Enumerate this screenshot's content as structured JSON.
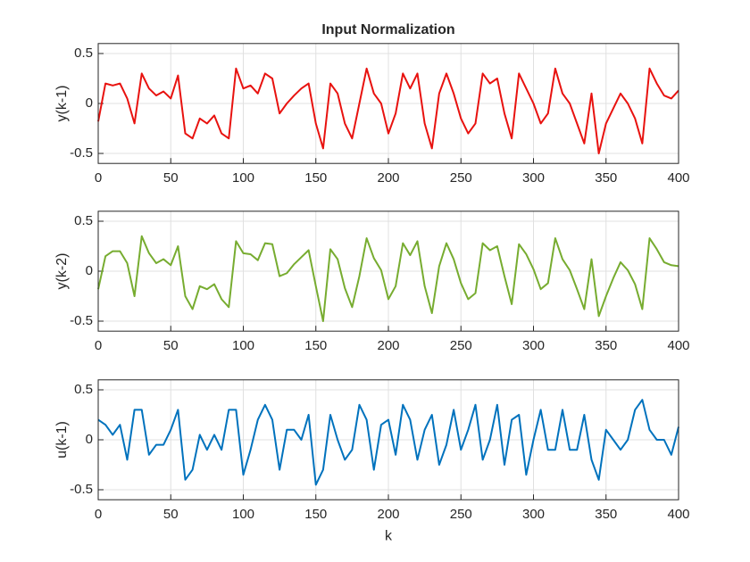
{
  "chart_data": [
    {
      "type": "line",
      "title": "Input Normalization",
      "ylabel": "y(k-1)",
      "color": "#e8120f",
      "x": [
        0,
        5,
        10,
        15,
        20,
        25,
        30,
        35,
        40,
        45,
        50,
        55,
        60,
        65,
        70,
        75,
        80,
        85,
        90,
        95,
        100,
        105,
        110,
        115,
        120,
        125,
        130,
        135,
        140,
        145,
        150,
        155,
        160,
        165,
        170,
        175,
        180,
        185,
        190,
        195,
        200,
        205,
        210,
        215,
        220,
        225,
        230,
        235,
        240,
        245,
        250,
        255,
        260,
        265,
        270,
        275,
        280,
        285,
        290,
        295,
        300,
        305,
        310,
        315,
        320,
        325,
        330,
        335,
        340,
        345,
        350,
        355,
        360,
        365,
        370,
        375,
        380,
        385,
        390,
        395,
        400
      ],
      "values": [
        -0.18,
        0.2,
        0.18,
        0.2,
        0.05,
        -0.2,
        0.3,
        0.15,
        0.08,
        0.12,
        0.05,
        0.28,
        -0.3,
        -0.35,
        -0.15,
        -0.2,
        -0.12,
        -0.3,
        -0.35,
        0.35,
        0.15,
        0.18,
        0.1,
        0.3,
        0.25,
        -0.1,
        0.0,
        0.08,
        0.15,
        0.2,
        -0.2,
        -0.45,
        0.2,
        0.1,
        -0.2,
        -0.35,
        0.0,
        0.35,
        0.1,
        0.0,
        -0.3,
        -0.1,
        0.3,
        0.15,
        0.3,
        -0.2,
        -0.45,
        0.1,
        0.3,
        0.1,
        -0.15,
        -0.3,
        -0.2,
        0.3,
        0.2,
        0.25,
        -0.1,
        -0.35,
        0.3,
        0.15,
        0.0,
        -0.2,
        -0.1,
        0.35,
        0.1,
        0.0,
        -0.2,
        -0.4,
        0.1,
        -0.5,
        -0.2,
        -0.05,
        0.1,
        0.0,
        -0.15,
        -0.4,
        0.35,
        0.2,
        0.08,
        0.05,
        0.13
      ],
      "xlim": [
        0,
        400
      ],
      "ylim": [
        -0.6,
        0.6
      ],
      "xticks": [
        0,
        50,
        100,
        150,
        200,
        250,
        300,
        350,
        400
      ],
      "yticks": [
        -0.5,
        0,
        0.5
      ],
      "grid": true
    },
    {
      "type": "line",
      "ylabel": "y(k-2)",
      "color": "#77ac30",
      "x": [
        0,
        5,
        10,
        15,
        20,
        25,
        30,
        35,
        40,
        45,
        50,
        55,
        60,
        65,
        70,
        75,
        80,
        85,
        90,
        95,
        100,
        105,
        110,
        115,
        120,
        125,
        130,
        135,
        140,
        145,
        150,
        155,
        160,
        165,
        170,
        175,
        180,
        185,
        190,
        195,
        200,
        205,
        210,
        215,
        220,
        225,
        230,
        235,
        240,
        245,
        250,
        255,
        260,
        265,
        270,
        275,
        280,
        285,
        290,
        295,
        300,
        305,
        310,
        315,
        320,
        325,
        330,
        335,
        340,
        345,
        350,
        355,
        360,
        365,
        370,
        375,
        380,
        385,
        390,
        395,
        400
      ],
      "values": [
        -0.18,
        0.15,
        0.2,
        0.2,
        0.08,
        -0.25,
        0.35,
        0.18,
        0.08,
        0.12,
        0.06,
        0.25,
        -0.25,
        -0.38,
        -0.15,
        -0.18,
        -0.13,
        -0.28,
        -0.36,
        0.3,
        0.18,
        0.17,
        0.11,
        0.28,
        0.27,
        -0.05,
        -0.02,
        0.07,
        0.14,
        0.21,
        -0.15,
        -0.5,
        0.22,
        0.12,
        -0.17,
        -0.36,
        -0.05,
        0.33,
        0.13,
        0.01,
        -0.28,
        -0.15,
        0.28,
        0.16,
        0.3,
        -0.15,
        -0.42,
        0.05,
        0.28,
        0.12,
        -0.12,
        -0.28,
        -0.22,
        0.28,
        0.21,
        0.25,
        -0.05,
        -0.33,
        0.27,
        0.17,
        0.02,
        -0.18,
        -0.12,
        0.33,
        0.12,
        0.01,
        -0.18,
        -0.38,
        0.12,
        -0.45,
        -0.25,
        -0.07,
        0.09,
        0.01,
        -0.13,
        -0.38,
        0.33,
        0.22,
        0.09,
        0.06,
        0.05
      ],
      "xlim": [
        0,
        400
      ],
      "ylim": [
        -0.6,
        0.6
      ],
      "xticks": [
        0,
        50,
        100,
        150,
        200,
        250,
        300,
        350,
        400
      ],
      "yticks": [
        -0.5,
        0,
        0.5
      ],
      "grid": true
    },
    {
      "type": "line",
      "ylabel": "u(k-1)",
      "xlabel": "k",
      "color": "#0072bd",
      "x": [
        0,
        5,
        10,
        15,
        20,
        25,
        30,
        35,
        40,
        45,
        50,
        55,
        60,
        65,
        70,
        75,
        80,
        85,
        90,
        95,
        100,
        105,
        110,
        115,
        120,
        125,
        130,
        135,
        140,
        145,
        150,
        155,
        160,
        165,
        170,
        175,
        180,
        185,
        190,
        195,
        200,
        205,
        210,
        215,
        220,
        225,
        230,
        235,
        240,
        245,
        250,
        255,
        260,
        265,
        270,
        275,
        280,
        285,
        290,
        295,
        300,
        305,
        310,
        315,
        320,
        325,
        330,
        335,
        340,
        345,
        350,
        355,
        360,
        365,
        370,
        375,
        380,
        385,
        390,
        395,
        400
      ],
      "values": [
        0.2,
        0.15,
        0.05,
        0.15,
        -0.2,
        0.3,
        0.3,
        -0.15,
        -0.05,
        -0.05,
        0.1,
        0.3,
        -0.4,
        -0.3,
        0.05,
        -0.1,
        0.05,
        -0.1,
        0.3,
        0.3,
        -0.35,
        -0.1,
        0.2,
        0.35,
        0.2,
        -0.3,
        0.1,
        0.1,
        0.0,
        0.25,
        -0.45,
        -0.3,
        0.25,
        0.0,
        -0.2,
        -0.1,
        0.35,
        0.2,
        -0.3,
        0.15,
        0.2,
        -0.15,
        0.35,
        0.2,
        -0.2,
        0.1,
        0.25,
        -0.25,
        -0.05,
        0.3,
        -0.1,
        0.1,
        0.35,
        -0.2,
        0.0,
        0.35,
        -0.25,
        0.2,
        0.25,
        -0.35,
        0.0,
        0.3,
        -0.1,
        -0.1,
        0.3,
        -0.1,
        -0.1,
        0.25,
        -0.2,
        -0.4,
        0.1,
        0.0,
        -0.1,
        0.0,
        0.3,
        0.4,
        0.1,
        0.0,
        0.0,
        -0.15,
        0.13
      ],
      "xlim": [
        0,
        400
      ],
      "ylim": [
        -0.6,
        0.6
      ],
      "xticks": [
        0,
        50,
        100,
        150,
        200,
        250,
        300,
        350,
        400
      ],
      "yticks": [
        -0.5,
        0,
        0.5
      ],
      "grid": true
    }
  ]
}
